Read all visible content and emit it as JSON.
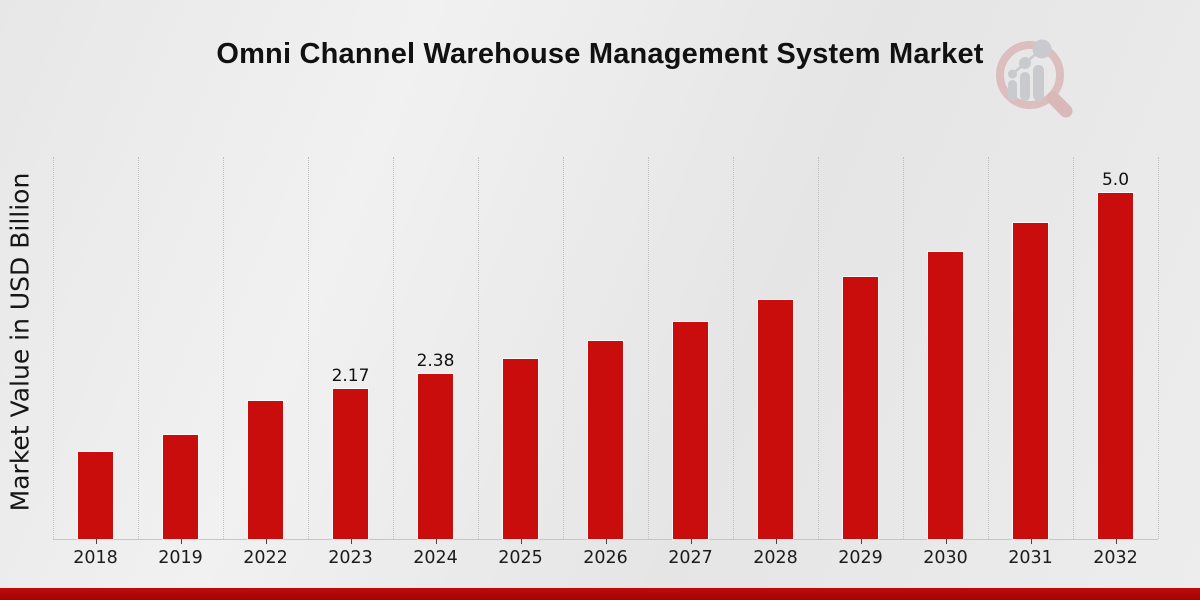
{
  "page": {
    "title": "Omni Channel Warehouse Management System Market"
  },
  "branding": {
    "logo_icon": "magnifier-bar-chart-logo",
    "ring_color": "#dcb9b9",
    "glyph_color": "#c6c7cb"
  },
  "chart_data": {
    "type": "bar",
    "title": "Omni Channel Warehouse Management System Market",
    "xlabel": "",
    "ylabel": "Market Value in USD Billion",
    "categories": [
      "2018",
      "2019",
      "2022",
      "2023",
      "2024",
      "2025",
      "2026",
      "2027",
      "2028",
      "2029",
      "2030",
      "2031",
      "2032"
    ],
    "values": [
      1.25,
      1.5,
      2.0,
      2.17,
      2.38,
      2.6,
      2.86,
      3.13,
      3.45,
      3.79,
      4.15,
      4.56,
      5.0
    ],
    "bar_labels": [
      "",
      "",
      "",
      "2.17",
      "2.38",
      "",
      "",
      "",
      "",
      "",
      "",
      "",
      "5.0"
    ],
    "ylim": [
      0,
      5.52
    ],
    "y_ticks_visible": false,
    "grid": "vertical-dotted",
    "legend": "none",
    "bar_color": "#c90d0d",
    "accent_strip_color": "#b30707",
    "background": "light-gray-gradient"
  }
}
